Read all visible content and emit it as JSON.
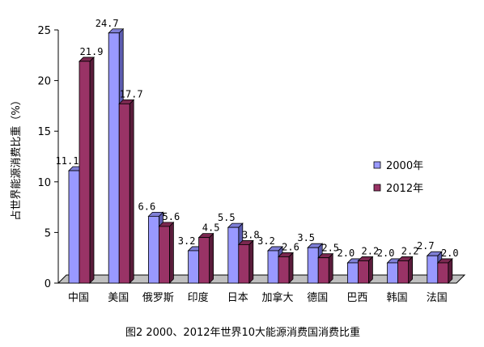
{
  "chart_data": {
    "type": "bar",
    "title": "",
    "caption": "图2 2000、2012年世界10大能源消费国消费比重",
    "ylabel": "占世界能源消费比重（%）",
    "xlabel": "",
    "ylim": [
      0,
      25
    ],
    "yticks": [
      "0",
      "5",
      "10",
      "15",
      "20",
      "25"
    ],
    "ytick_values": [
      0,
      5,
      10,
      15,
      20,
      25
    ],
    "categories": [
      "中国",
      "美国",
      "俄罗斯",
      "印度",
      "日本",
      "加拿大",
      "德国",
      "巴西",
      "韩国",
      "法国"
    ],
    "series": [
      {
        "name": "2000年",
        "color": "#9999ff",
        "values": [
          11.1,
          24.7,
          6.6,
          3.2,
          5.5,
          3.2,
          3.5,
          2.0,
          2.0,
          2.7
        ],
        "labels": [
          "11.1",
          "24.7",
          "6.6",
          "3.2",
          "5.5",
          "3.2",
          "3.5",
          "2.0",
          "2.0",
          "2.7"
        ]
      },
      {
        "name": "2012年",
        "color": "#993366",
        "values": [
          21.9,
          17.7,
          5.6,
          4.5,
          3.8,
          2.6,
          2.5,
          2.2,
          2.2,
          2.0
        ],
        "labels": [
          "21.9",
          "17.7",
          "5.6",
          "4.5",
          "3.8",
          "2.6",
          "2.5",
          "2.2",
          "2.2",
          "2.0"
        ]
      }
    ],
    "grid": false,
    "legend_position": "right",
    "three_d": true
  }
}
